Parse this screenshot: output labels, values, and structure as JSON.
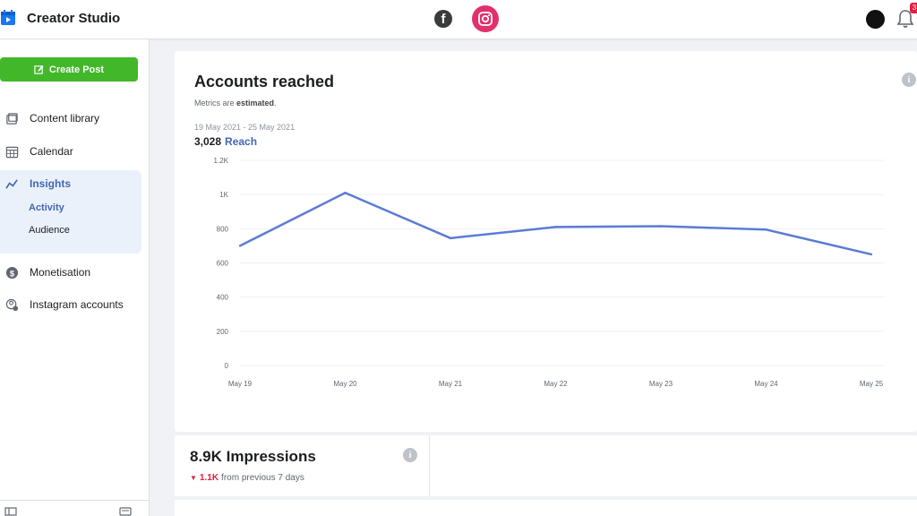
{
  "header": {
    "app_title": "Creator Studio",
    "notification_count": "3"
  },
  "sidebar": {
    "create_post_label": "Create Post",
    "items": [
      {
        "label": "Content library",
        "icon": "content-library-icon"
      },
      {
        "label": "Calendar",
        "icon": "calendar-icon"
      },
      {
        "label": "Insights",
        "icon": "insights-icon"
      },
      {
        "label": "Monetisation",
        "icon": "monetisation-icon"
      },
      {
        "label": "Instagram accounts",
        "icon": "instagram-accounts-icon"
      }
    ],
    "insights_sub": [
      "Activity",
      "Audience"
    ]
  },
  "reach_card": {
    "title": "Accounts reached",
    "note_prefix": "Metrics are ",
    "note_bold": "estimated",
    "note_suffix": ".",
    "date_range": "19 May 2021 - 25 May 2021",
    "reach_value": "3,028",
    "reach_label": "Reach"
  },
  "chart_data": {
    "type": "line",
    "categories": [
      "May 19",
      "May 20",
      "May 21",
      "May 22",
      "May 23",
      "May 24",
      "May 25"
    ],
    "series": [
      {
        "name": "Reach",
        "values": [
          700,
          1010,
          745,
          810,
          815,
          795,
          650
        ],
        "color": "#5b7bd5"
      }
    ],
    "y_ticks": [
      "0",
      "200",
      "400",
      "600",
      "800",
      "1K",
      "1.2K"
    ],
    "ylim": [
      0,
      1200
    ],
    "grid": true
  },
  "impressions_card": {
    "title": "8.9K Impressions",
    "delta_value": "1.1K",
    "delta_suffix": "from previous 7 days"
  },
  "colors": {
    "accent": "#4267b2",
    "create_button": "#42b72a",
    "instagram": "#e1306c",
    "line": "#5b7bd5",
    "negative": "#e41e3f"
  }
}
